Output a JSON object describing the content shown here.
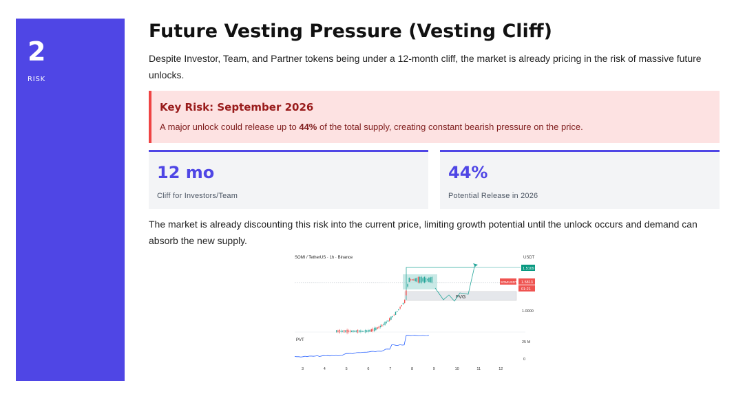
{
  "side": {
    "number": "2",
    "label": "RISK"
  },
  "title": "Future Vesting Pressure (Vesting Cliff)",
  "intro": "Despite Investor, Team, and Partner tokens being under a 12-month cliff, the market is already pricing in the risk of massive future unlocks.",
  "alert": {
    "title": "Key Risk: September 2026",
    "text_before": "A major unlock could release up to ",
    "text_bold": "44%",
    "text_after": " of the total supply, creating constant bearish pressure on the price.",
    "accent_color": "#ef4444"
  },
  "stats": [
    {
      "value": "12 mo",
      "label": "Cliff for Investors/Team"
    },
    {
      "value": "44%",
      "label": "Potential Release in 2026"
    }
  ],
  "outro": "The market is already discounting this risk into the current price, limiting growth potential until the unlock occurs and demand can absorb the new supply.",
  "colors": {
    "brand": "#4f46e5",
    "alert_bg": "#fde2e2",
    "card_bg": "#f3f4f6"
  },
  "chart_image": {
    "header": "SOMI / TetherUS · 1h · Binance",
    "currency": "USDT",
    "target_price": "1.5109",
    "symbol_tag": "SOMIUSDT",
    "current_price": "1.5813",
    "countdown": "01:21",
    "level_price": "1.0000",
    "zone_label": "FVG",
    "indicator_label": "PVT",
    "indicator_top_tick": "25 M",
    "indicator_zero_tick": "0",
    "x_ticks": [
      "3",
      "4",
      "5",
      "6",
      "7",
      "8",
      "9",
      "10",
      "11",
      "12"
    ],
    "up_color": "#26a69a",
    "down_color": "#ef5350",
    "pvt_color": "#2962ff"
  }
}
